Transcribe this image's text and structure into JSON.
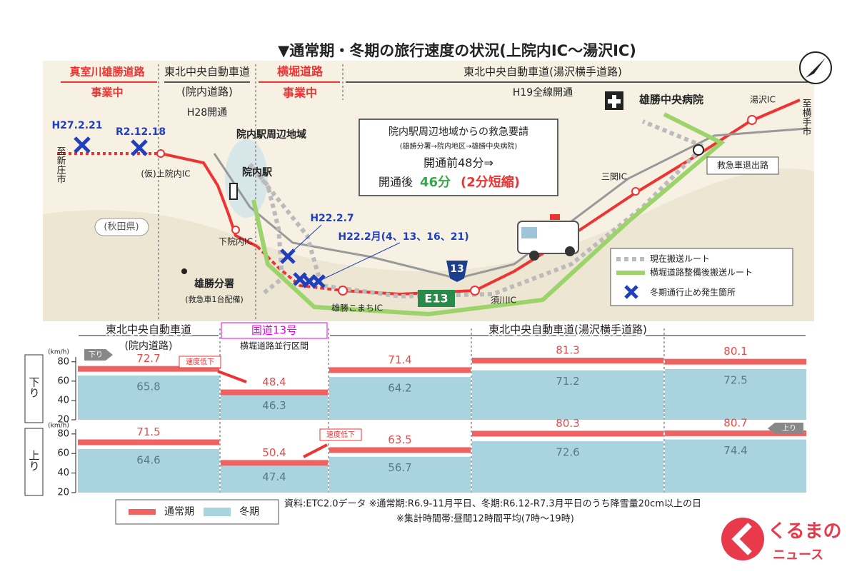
{
  "title": "▼通常期・冬期の旅行速度の状況(上院内IC～湯沢IC)",
  "sections": [
    {
      "name": "真室川雄勝道路",
      "status": "事業中"
    },
    {
      "name": "東北中央自動車道",
      "sub": "(院内道路)",
      "status": "H28開通"
    },
    {
      "name": "横堀道路",
      "status": "事業中"
    },
    {
      "name": "東北中央自動車道(湯沢横手道路)",
      "status": "H19全線開通"
    }
  ],
  "map_labels": {
    "to_shinjo": "至新庄市",
    "to_yokote": "至横手市",
    "kami_innai_ic": "(仮)上院内IC",
    "innai_area": "院内駅周辺地域",
    "innai_station": "院内駅",
    "akita": "(秋田県)",
    "shimo_innai_ic": "下院内IC",
    "ogachi_station": "雄勝分署",
    "ogachi_note": "(救急車1台配備)",
    "komachi_ic": "雄勝こまちIC",
    "sukawa_ic": "須川IC",
    "sanseki_ic": "三関IC",
    "yuzawa_ic": "湯沢IC",
    "hospital": "雄勝中央病院",
    "exit": "救急車退出路",
    "e13": "E13",
    "r13": "13"
  },
  "incidents": [
    "H27.2.21",
    "R2.12.18",
    "H22.2.7",
    "H22.2月(4、13、16、21)"
  ],
  "info_box": {
    "title": "院内駅周辺地域からの救急要請",
    "route": "(雄勝分署→院内地区→雄勝中央病院)",
    "before": "開通前48分⇒",
    "after_label": "開通後",
    "after": "46分",
    "saving": "(2分短縮)"
  },
  "map_legend": [
    "現在搬送ルート",
    "横堀道路整備後搬送ルート",
    "冬期通行止め発生箇所"
  ],
  "speed": {
    "unit": "(km/h)",
    "ylim": [
      20,
      85
    ],
    "yticks": [
      20,
      40,
      60,
      80
    ],
    "segments": [
      {
        "name": "東北中央自動車道",
        "sub": "(院内道路)"
      },
      {
        "name": "国道13号",
        "sub": "横堀道路並行区間"
      },
      {
        "name": "東北中央自動車道(湯沢横手道路)"
      }
    ],
    "rows": [
      {
        "label": "下り",
        "tag": "下り",
        "note": "速度低下",
        "normal": [
          72.7,
          48.4,
          71.4,
          81.3,
          80.1
        ],
        "winter": [
          65.8,
          46.3,
          64.2,
          71.2,
          72.5
        ]
      },
      {
        "label": "上り",
        "tag": "上り",
        "note": "速度低下",
        "normal": [
          71.5,
          50.4,
          63.5,
          80.3,
          80.7
        ],
        "winter": [
          64.6,
          47.4,
          56.7,
          72.6,
          74.4
        ]
      }
    ],
    "legend": [
      "通常期",
      "冬期"
    ]
  },
  "source": "資料:ETC2.0データ ※通常期:R6.9-11月平日、冬期:R6.12-R7.3月平日のうち降雪量20cm以上の日",
  "note": "※集計時間帯:昼間12時間平均(7時～19時)",
  "logo": [
    "くるまの",
    "ニュース"
  ]
}
